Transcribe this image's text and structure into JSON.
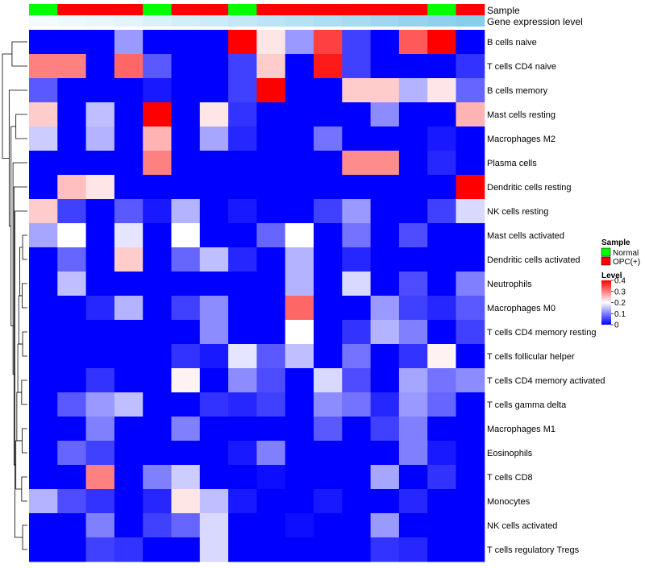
{
  "chart_data": {
    "type": "heatmap",
    "title": "",
    "annotation_labels": {
      "sample": "Sample",
      "expression": "Gene expression level"
    },
    "samples": [
      "Normal",
      "OPC(+)",
      "OPC(+)",
      "OPC(+)",
      "Normal",
      "OPC(+)",
      "OPC(+)",
      "Normal",
      "OPC(+)",
      "OPC(+)",
      "OPC(+)",
      "OPC(+)",
      "OPC(+)",
      "OPC(+)",
      "Normal",
      "OPC(+)"
    ],
    "expression_levels": [
      0.05,
      0.08,
      0.11,
      0.14,
      0.18,
      0.22,
      0.26,
      0.3,
      0.34,
      0.38,
      0.42,
      0.46,
      0.5,
      0.54,
      0.58,
      0.62
    ],
    "rows": [
      "B cells naive",
      "T cells CD4 naive",
      "B cells memory",
      "Mast cells resting",
      "Macrophages M2",
      "Plasma cells",
      "Dendritic cells resting",
      "NK cells resting",
      "Mast cells activated",
      "Dendritic cells activated",
      "Neutrophils",
      "Macrophages M0",
      "T cells CD4 memory resting",
      "T cells follicular helper",
      "T cells CD4 memory activated",
      "T cells gamma delta",
      "Macrophages M1",
      "Eosinophils",
      "T cells CD8",
      "Monocytes",
      "NK cells activated",
      "T cells regulatory  Tregs"
    ],
    "values": [
      [
        0,
        0,
        0,
        0.12,
        0,
        0,
        0,
        0.4,
        0.22,
        0.12,
        0.35,
        0.05,
        0,
        0.33,
        0.4,
        0
      ],
      [
        0.3,
        0.3,
        0,
        0.32,
        0.07,
        0,
        0,
        0.05,
        0.24,
        0,
        0.38,
        0.05,
        0,
        0,
        0,
        0.04
      ],
      [
        0.07,
        0,
        0,
        0,
        0.02,
        0,
        0,
        0.05,
        0.42,
        0,
        0,
        0.24,
        0.24,
        0.14,
        0.22,
        0.08
      ],
      [
        0.24,
        0,
        0.15,
        0,
        0.42,
        0,
        0.22,
        0.04,
        0,
        0,
        0,
        0,
        0.11,
        0,
        0,
        0.26
      ],
      [
        0.16,
        0,
        0.14,
        0,
        0.26,
        0,
        0.13,
        0.03,
        0,
        0,
        0.09,
        0,
        0,
        0,
        0.02,
        0
      ],
      [
        0,
        0,
        0,
        0,
        0.3,
        0,
        0,
        0,
        0,
        0,
        0,
        0.29,
        0.29,
        0,
        0.03,
        0
      ],
      [
        0,
        0.25,
        0.22,
        0,
        0,
        0,
        0,
        0,
        0,
        0,
        0,
        0,
        0,
        0,
        0,
        0.4
      ],
      [
        0.24,
        0.05,
        0,
        0.07,
        0.02,
        0.14,
        0,
        0.02,
        0,
        0,
        0.05,
        0.12,
        0,
        0,
        0.05,
        0.17
      ],
      [
        0.13,
        0.2,
        0,
        0.18,
        0,
        0.2,
        0,
        0,
        0.08,
        0.2,
        0,
        0.09,
        0,
        0.06,
        0,
        0
      ],
      [
        0,
        0.08,
        0,
        0.24,
        0,
        0.08,
        0.15,
        0.03,
        0,
        0.14,
        0,
        0.03,
        0,
        0,
        0,
        0
      ],
      [
        0,
        0.15,
        0,
        0,
        0,
        0,
        0,
        0,
        0,
        0.14,
        0,
        0.17,
        0,
        0.06,
        0,
        0.1
      ],
      [
        0,
        0,
        0.03,
        0.14,
        0,
        0.05,
        0.11,
        0,
        0,
        0.32,
        0,
        0,
        0.12,
        0.05,
        0.03,
        0.07
      ],
      [
        0,
        0,
        0,
        0,
        0,
        0,
        0.11,
        0,
        0,
        0.2,
        0,
        0.04,
        0.14,
        0.1,
        0,
        0.05
      ],
      [
        0,
        0,
        0,
        0,
        0,
        0.04,
        0.02,
        0.18,
        0.07,
        0.15,
        0,
        0.09,
        0,
        0.04,
        0.21,
        0
      ],
      [
        0,
        0,
        0.04,
        0,
        0,
        0.21,
        0,
        0.11,
        0.06,
        0,
        0.17,
        0.06,
        0,
        0.13,
        0.09,
        0.11
      ],
      [
        0,
        0.07,
        0.12,
        0.15,
        0,
        0,
        0.04,
        0.03,
        0.05,
        0,
        0.11,
        0.09,
        0.03,
        0.12,
        0.08,
        0
      ],
      [
        0,
        0,
        0.1,
        0,
        0,
        0.1,
        0,
        0,
        0,
        0,
        0.07,
        0,
        0.05,
        0.1,
        0,
        0
      ],
      [
        0,
        0.08,
        0.05,
        0,
        0,
        0,
        0,
        0.02,
        0.1,
        0,
        0,
        0,
        0,
        0.1,
        0.02,
        0
      ],
      [
        0,
        0,
        0.3,
        0,
        0.1,
        0.16,
        0,
        0,
        0.01,
        0,
        0,
        0,
        0.13,
        0,
        0.04,
        0
      ],
      [
        0.14,
        0.06,
        0.04,
        0,
        0.03,
        0.22,
        0.15,
        0.02,
        0,
        0,
        0.02,
        0,
        0,
        0.03,
        0,
        0
      ],
      [
        0,
        0,
        0.1,
        0,
        0.05,
        0.08,
        0.17,
        0,
        0,
        0.01,
        0,
        0,
        0.12,
        0,
        0,
        0
      ],
      [
        0,
        0,
        0.05,
        0.04,
        0,
        0,
        0.17,
        0,
        0,
        0,
        0,
        0,
        0.04,
        0.03,
        0,
        0
      ]
    ],
    "color_scale": {
      "min": 0,
      "max": 0.4,
      "stops": [
        [
          0,
          "#0000ff"
        ],
        [
          0.2,
          "#ffffff"
        ],
        [
          0.4,
          "#ff0000"
        ]
      ]
    },
    "sample_colors": {
      "Normal": "#00ff00",
      "OPC(+)": "#ff0000"
    },
    "expression_colors": {
      "low": "#f4fbfe",
      "high": "#87ceeb"
    },
    "legend": {
      "sample_title": "Sample",
      "sample_entries": [
        "Normal",
        "OPC(+)"
      ],
      "level_title": "Level",
      "level_ticks": [
        "0.4",
        "0.3",
        "0.2",
        "0.1",
        "0"
      ]
    },
    "row_dendrogram": {
      "merges": [
        [
          20,
          21,
          0.5
        ],
        [
          18,
          19,
          0.6
        ],
        [
          16,
          17,
          0.55
        ],
        [
          14,
          15,
          0.6
        ],
        [
          12,
          13,
          0.5
        ],
        [
          10,
          11,
          0.55
        ],
        [
          8,
          9,
          0.5
        ],
        [
          "m7",
          "m6",
          0.8
        ],
        [
          "m6",
          "m5",
          0.9
        ],
        [
          "m5",
          "m4",
          1.0
        ],
        [
          "m4",
          "m3",
          1.1
        ],
        [
          "m3",
          "m2",
          1.2
        ],
        [
          7,
          "m1",
          1.3
        ],
        [
          6,
          "m12",
          1.4
        ],
        [
          5,
          "m13",
          1.5
        ],
        [
          3,
          4,
          1.2
        ],
        [
          "m16",
          "m14",
          1.7
        ],
        [
          2,
          "m17",
          1.9
        ],
        [
          0,
          1,
          1.6
        ],
        [
          "m19",
          "m18",
          2.6
        ]
      ]
    }
  }
}
